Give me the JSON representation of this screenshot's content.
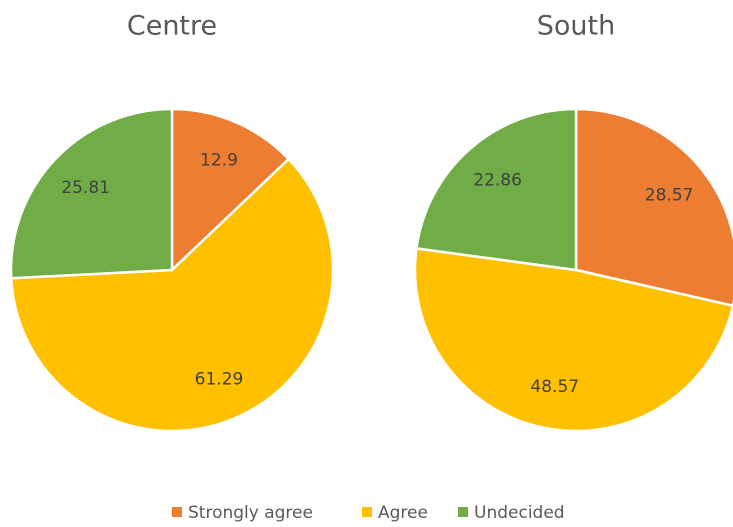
{
  "chart_data": [
    {
      "type": "pie",
      "title": "Centre",
      "categories": [
        "Strongly agree",
        "Agree",
        "Undecided"
      ],
      "values": [
        12.9,
        61.29,
        25.81
      ],
      "colors": [
        "#ed7d31",
        "#ffc000",
        "#70ad47"
      ]
    },
    {
      "type": "pie",
      "title": "South",
      "categories": [
        "Strongly agree",
        "Agree",
        "Undecided"
      ],
      "values": [
        28.57,
        48.57,
        22.86
      ],
      "colors": [
        "#ed7d31",
        "#ffc000",
        "#70ad47"
      ]
    }
  ]
}
